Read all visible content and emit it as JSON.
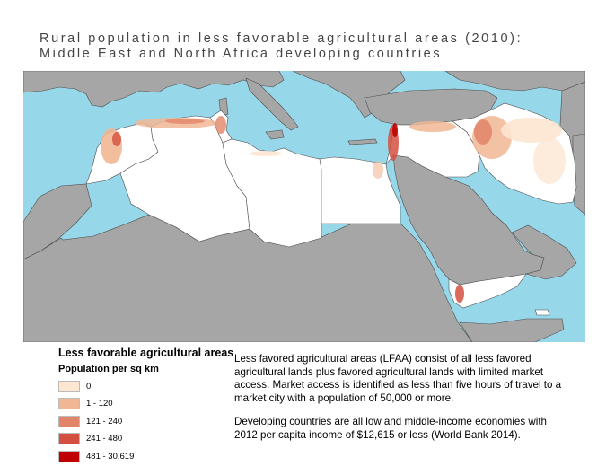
{
  "title_lines": [
    "Rural population in less favorable agricultural areas (2010):",
    "Middle East and North Africa developing countries"
  ],
  "colors": {
    "sea": "#97d7ea",
    "other_land": "#a6a6a6",
    "study_region": "#ffffff",
    "borders": "#4d4d4d"
  },
  "legend": {
    "title": "Less favorable agricultural areas",
    "subtitle": "Population per sq km",
    "items": [
      {
        "label": "0",
        "color": "#fde6d2"
      },
      {
        "label": "1 - 120",
        "color": "#f1b794"
      },
      {
        "label": "121 - 240",
        "color": "#e28468"
      },
      {
        "label": "241 - 480",
        "color": "#d35040"
      },
      {
        "label": "481 - 30,619",
        "color": "#c00000"
      }
    ]
  },
  "description": {
    "paragraph1": "Less favored agricultural areas (LFAA) consist of all less favored agricultural lands plus favored agricultural lands with limited market access. Market access is identified as less than five hours of travel to a market city with a population of 50,000 or more.",
    "paragraph2": "Developing countries are all low and middle-income economies with 2012 per capita income of $12,615 or less (World Bank 2014)."
  }
}
